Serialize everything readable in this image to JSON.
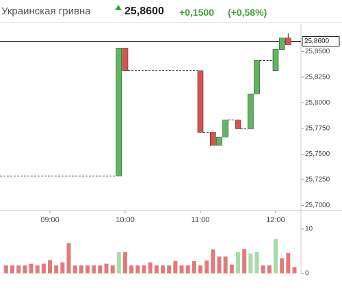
{
  "header": {
    "title": "Украинская гривна",
    "price": "25,8600",
    "change": "+0,1500",
    "change_pct": "(+0,58%)"
  },
  "chart_data": [
    {
      "type": "candlestick",
      "x": [
        "09:55",
        "10:00",
        "11:00",
        "11:10",
        "11:15",
        "11:20",
        "11:30",
        "11:40",
        "11:45",
        "12:00",
        "12:05",
        "12:10"
      ],
      "open": [
        25.7287,
        25.8533,
        25.8313,
        25.7713,
        25.7587,
        25.7667,
        25.7833,
        25.7747,
        25.8087,
        25.8313,
        25.852,
        25.8633
      ],
      "high": [
        25.8533,
        25.8533,
        25.8313,
        25.7713,
        25.7667,
        25.7833,
        25.7833,
        25.8087,
        25.8413,
        25.852,
        25.8633,
        25.868
      ],
      "low": [
        25.7287,
        25.8313,
        25.7713,
        25.7587,
        25.7587,
        25.7667,
        25.7747,
        25.7747,
        25.8087,
        25.8313,
        25.852,
        25.8567
      ],
      "close": [
        25.8533,
        25.8313,
        25.7713,
        25.7587,
        25.7667,
        25.7833,
        25.7747,
        25.8087,
        25.8413,
        25.852,
        25.8633,
        25.8567
      ],
      "up_color": "#5cb85c",
      "down_color": "#d9534f",
      "ylim": [
        25.695,
        25.877
      ],
      "yticks": [
        {
          "value": 25.7,
          "label": "25,7000"
        },
        {
          "value": 25.725,
          "label": "25,7250"
        },
        {
          "value": 25.75,
          "label": "25,7500"
        },
        {
          "value": 25.775,
          "label": "25,7750"
        },
        {
          "value": 25.8,
          "label": "25,8000"
        },
        {
          "value": 25.825,
          "label": "25,8250"
        },
        {
          "value": 25.85,
          "label": "25,8500"
        }
      ],
      "xticks": [
        "09:00",
        "10:00",
        "11:00",
        "12:00"
      ],
      "price_line": {
        "value": 25.86,
        "label": "25,8600"
      }
    },
    {
      "type": "bar",
      "x": [
        "08:25",
        "08:30",
        "08:35",
        "08:40",
        "08:45",
        "08:50",
        "08:55",
        "09:00",
        "09:05",
        "09:10",
        "09:15",
        "09:20",
        "09:25",
        "09:30",
        "09:35",
        "09:40",
        "09:45",
        "09:50",
        "09:55",
        "10:00",
        "10:05",
        "10:10",
        "10:15",
        "10:20",
        "10:25",
        "10:30",
        "10:35",
        "10:40",
        "10:45",
        "10:50",
        "10:55",
        "11:00",
        "11:05",
        "11:10",
        "11:15",
        "11:20",
        "11:25",
        "11:30",
        "11:35",
        "11:40",
        "11:45",
        "11:50",
        "11:55",
        "12:00",
        "12:05",
        "12:10",
        "12:15"
      ],
      "values": [
        1.8,
        1.8,
        1.8,
        1.8,
        2.2,
        1.8,
        2.2,
        3.0,
        1.8,
        2.5,
        6.8,
        1.8,
        1.8,
        1.8,
        1.8,
        1.8,
        2.2,
        1.8,
        4.8,
        4.8,
        1.8,
        1.8,
        1.8,
        2.5,
        1.8,
        1.8,
        1.8,
        2.8,
        1.8,
        1.8,
        2.8,
        1.8,
        2.9,
        5.4,
        3.8,
        3.8,
        2.0,
        4.8,
        5.5,
        4.5,
        4.8,
        1.8,
        1.8,
        7.8,
        3.4,
        4.6,
        1.4
      ],
      "colors": [
        "#e07b7b",
        "#e07b7b",
        "#e07b7b",
        "#e07b7b",
        "#e07b7b",
        "#e07b7b",
        "#e07b7b",
        "#e07b7b",
        "#e07b7b",
        "#e07b7b",
        "#e07b7b",
        "#e07b7b",
        "#e07b7b",
        "#e07b7b",
        "#e07b7b",
        "#e07b7b",
        "#e07b7b",
        "#e07b7b",
        "#a9d9a9",
        "#e07b7b",
        "#e07b7b",
        "#e07b7b",
        "#e07b7b",
        "#e07b7b",
        "#e07b7b",
        "#e07b7b",
        "#e07b7b",
        "#e07b7b",
        "#e07b7b",
        "#e07b7b",
        "#e07b7b",
        "#e07b7b",
        "#e07b7b",
        "#e07b7b",
        "#e07b7b",
        "#e07b7b",
        "#e07b7b",
        "#a9d9a9",
        "#e07b7b",
        "#a9d9a9",
        "#a9d9a9",
        "#e07b7b",
        "#e07b7b",
        "#a9d9a9",
        "#e07b7b",
        "#e07b7b",
        "#e07b7b"
      ],
      "ylim": [
        0,
        10
      ],
      "yticks": [
        0,
        10
      ]
    }
  ]
}
